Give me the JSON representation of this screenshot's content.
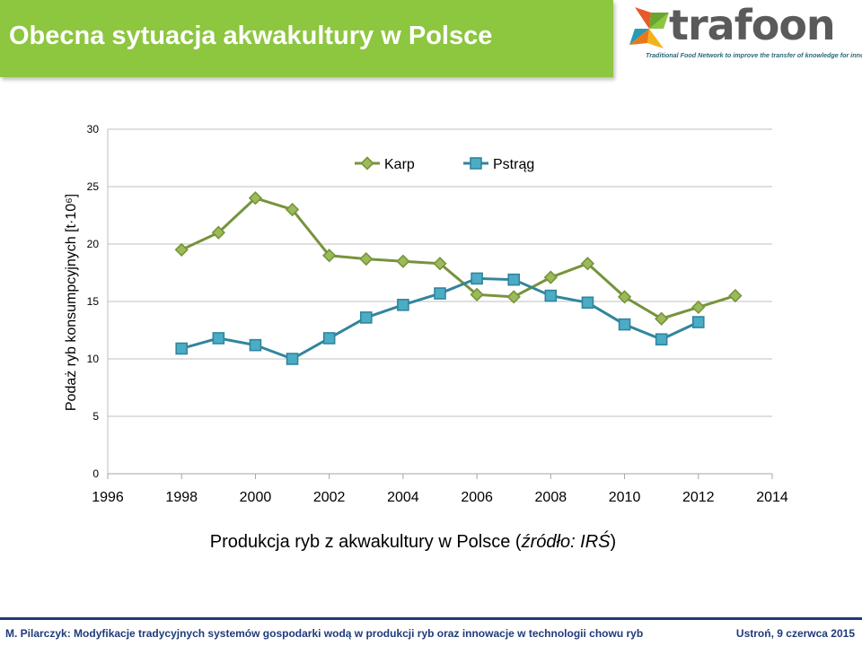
{
  "header": {
    "title": "Obecna sytuacja akwakultury w Polsce"
  },
  "logo": {
    "name": "trafoon",
    "tagline": "Traditional Food Network to improve the transfer of knowledge for innovation"
  },
  "caption": {
    "main": "Produkcja ryb z akwakultury w Polsce (",
    "source": "źródło: IRŚ",
    "end": ")"
  },
  "footer": {
    "left": "M. Pilarczyk: Modyfikacje tradycyjnych systemów gospodarki wodą w produkcji ryb oraz innowacje w technologii chowu ryb",
    "right": "Ustroń, 9 czerwca 2015"
  },
  "chart_data": {
    "type": "line",
    "title": "",
    "xlabel": "",
    "ylabel": "Podaż ryb konsumpcyjnych [t·10⁶]",
    "xlim": [
      1996,
      2014
    ],
    "ylim": [
      0,
      30
    ],
    "x_ticks": [
      1996,
      1998,
      2000,
      2002,
      2004,
      2006,
      2008,
      2010,
      2012,
      2014
    ],
    "y_ticks": [
      0,
      5,
      10,
      15,
      20,
      25,
      30
    ],
    "grid": true,
    "legend_position": "top-center",
    "series": [
      {
        "name": "Karp",
        "color": "#77933c",
        "marker": "diamond",
        "x": [
          1998,
          1999,
          2000,
          2001,
          2002,
          2003,
          2004,
          2005,
          2006,
          2007,
          2008,
          2009,
          2010,
          2011,
          2012,
          2013
        ],
        "values": [
          19.5,
          21.0,
          24.0,
          23.0,
          19.0,
          18.7,
          18.5,
          18.3,
          15.6,
          15.4,
          17.1,
          18.3,
          15.4,
          13.5,
          14.5,
          15.5
        ]
      },
      {
        "name": "Pstrąg",
        "color": "#31859c",
        "marker": "square",
        "x": [
          1998,
          1999,
          2000,
          2001,
          2002,
          2003,
          2004,
          2005,
          2006,
          2007,
          2008,
          2009,
          2010,
          2011,
          2012
        ],
        "values": [
          10.9,
          11.8,
          11.2,
          10.0,
          11.8,
          13.6,
          14.7,
          15.7,
          17.0,
          16.9,
          15.5,
          14.9,
          13.0,
          11.7,
          13.2
        ]
      }
    ]
  }
}
